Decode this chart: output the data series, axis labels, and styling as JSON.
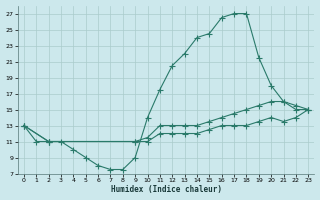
{
  "xlabel": "Humidex (Indice chaleur)",
  "bg_color": "#cce8ec",
  "grid_color": "#aacccc",
  "line_color": "#2a7a6a",
  "line1_x": [
    0,
    1,
    2,
    3,
    4,
    5,
    6,
    7,
    8,
    9,
    10,
    11,
    12,
    13,
    14,
    15,
    16,
    17,
    18,
    19,
    20,
    21,
    22,
    23
  ],
  "line1_y": [
    13,
    11,
    11,
    11,
    10,
    9,
    8,
    7.5,
    7.5,
    9,
    14,
    17.5,
    20.5,
    22,
    24,
    24.5,
    26.5,
    27,
    27,
    21.5,
    18,
    16,
    15,
    15
  ],
  "line2_x": [
    0,
    2,
    9,
    10,
    11,
    12,
    13,
    14,
    15,
    16,
    17,
    18,
    19,
    20,
    21,
    22,
    23
  ],
  "line2_y": [
    13,
    11,
    11,
    11.5,
    13,
    13,
    13,
    13,
    13.5,
    14,
    14.5,
    15,
    15.5,
    16,
    16,
    15.5,
    15
  ],
  "line3_x": [
    0,
    2,
    9,
    10,
    11,
    12,
    13,
    14,
    15,
    16,
    17,
    18,
    19,
    20,
    21,
    22,
    23
  ],
  "line3_y": [
    13,
    11,
    11,
    11,
    12,
    12,
    12,
    12,
    12.5,
    13,
    13,
    13,
    13.5,
    14,
    13.5,
    14,
    15
  ],
  "ylim": [
    7,
    28
  ],
  "xlim": [
    -0.5,
    23.5
  ],
  "yticks": [
    7,
    9,
    11,
    13,
    15,
    17,
    19,
    21,
    23,
    25,
    27
  ],
  "xticks": [
    0,
    1,
    2,
    3,
    4,
    5,
    6,
    7,
    8,
    9,
    10,
    11,
    12,
    13,
    14,
    15,
    16,
    17,
    18,
    19,
    20,
    21,
    22,
    23
  ]
}
